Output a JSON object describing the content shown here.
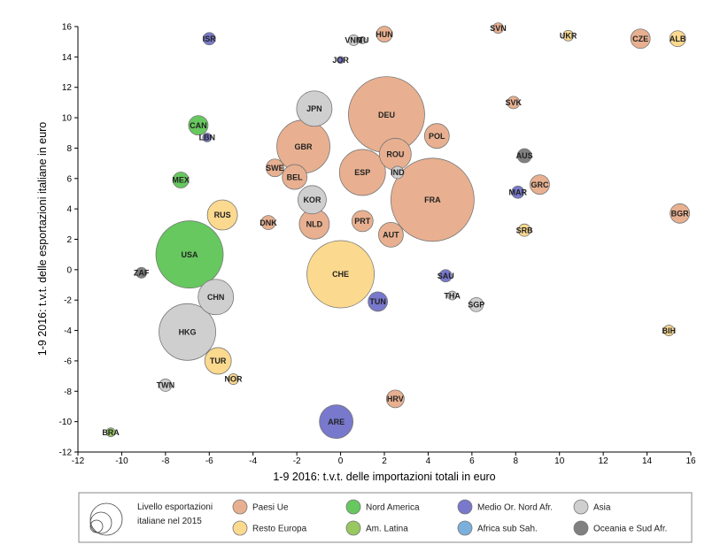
{
  "chart_data": {
    "type": "scatter",
    "title": "",
    "xlabel": "1-9 2016: t.v.t. delle importazioni totali in euro",
    "ylabel": "1-9 2016: t.v.t. delle esportazioni italiane in euro",
    "xlim": [
      -12,
      16
    ],
    "ylim": [
      -12,
      16
    ],
    "x_ticks": [
      -12,
      -10,
      -8,
      -6,
      -4,
      -2,
      0,
      2,
      4,
      6,
      8,
      10,
      12,
      14,
      16
    ],
    "y_ticks": [
      -12,
      -10,
      -8,
      -6,
      -4,
      -2,
      0,
      2,
      4,
      6,
      8,
      10,
      12,
      14,
      16
    ],
    "grid": false,
    "size_legend_label": "Livello esportazioni italiane nel 2015",
    "groups": [
      {
        "key": "ue",
        "name": "Paesi Ue",
        "color": "#e8b090"
      },
      {
        "key": "na",
        "name": "Nord America",
        "color": "#66c85e"
      },
      {
        "key": "mena",
        "name": "Medio Or. Nord Afr.",
        "color": "#7878cc"
      },
      {
        "key": "asia",
        "name": "Asia",
        "color": "#cfcfcf"
      },
      {
        "key": "re",
        "name": "Resto Europa",
        "color": "#fbd98e"
      },
      {
        "key": "la",
        "name": "Am. Latina",
        "color": "#98c860"
      },
      {
        "key": "ssa",
        "name": "Africa sub Sah.",
        "color": "#7bb0dc"
      },
      {
        "key": "oc",
        "name": "Oceania e Sud Afr.",
        "color": "#808080"
      }
    ],
    "points": [
      {
        "label": "FRA",
        "x": 4.2,
        "y": 4.6,
        "size": 47,
        "group": "ue"
      },
      {
        "label": "DEU",
        "x": 2.1,
        "y": 10.2,
        "size": 43,
        "group": "ue"
      },
      {
        "label": "CHE",
        "x": 0.0,
        "y": -0.3,
        "size": 38,
        "group": "re"
      },
      {
        "label": "USA",
        "x": -6.9,
        "y": 1.0,
        "size": 38,
        "group": "na"
      },
      {
        "label": "GBR",
        "x": -1.7,
        "y": 8.1,
        "size": 30,
        "group": "ue"
      },
      {
        "label": "HKG",
        "x": -7.0,
        "y": -4.1,
        "size": 32,
        "group": "asia"
      },
      {
        "label": "ESP",
        "x": 1.0,
        "y": 6.4,
        "size": 26,
        "group": "ue"
      },
      {
        "label": "JPN",
        "x": -1.2,
        "y": 10.6,
        "size": 20,
        "group": "asia"
      },
      {
        "label": "CHN",
        "x": -5.7,
        "y": -1.8,
        "size": 20,
        "group": "asia"
      },
      {
        "label": "ARE",
        "x": -0.2,
        "y": -10.0,
        "size": 19,
        "group": "mena"
      },
      {
        "label": "ROU",
        "x": 2.5,
        "y": 7.6,
        "size": 18,
        "group": "ue"
      },
      {
        "label": "RUS",
        "x": -5.4,
        "y": 3.6,
        "size": 17,
        "group": "re"
      },
      {
        "label": "NLD",
        "x": -1.2,
        "y": 3.0,
        "size": 17,
        "group": "ue"
      },
      {
        "label": "KOR",
        "x": -1.3,
        "y": 4.6,
        "size": 16,
        "group": "asia"
      },
      {
        "label": "BEL",
        "x": -2.1,
        "y": 6.1,
        "size": 14,
        "group": "ue"
      },
      {
        "label": "POL",
        "x": 4.4,
        "y": 8.8,
        "size": 14,
        "group": "ue"
      },
      {
        "label": "TUR",
        "x": -5.6,
        "y": -6.0,
        "size": 15,
        "group": "re"
      },
      {
        "label": "AUT",
        "x": 2.3,
        "y": 2.3,
        "size": 14,
        "group": "ue"
      },
      {
        "label": "PRT",
        "x": 1.0,
        "y": 3.2,
        "size": 12,
        "group": "ue"
      },
      {
        "label": "GRC",
        "x": 9.1,
        "y": 5.6,
        "size": 11,
        "group": "ue"
      },
      {
        "label": "BGR",
        "x": 15.5,
        "y": 3.7,
        "size": 11,
        "group": "ue"
      },
      {
        "label": "CZE",
        "x": 13.7,
        "y": 15.2,
        "size": 11,
        "group": "ue"
      },
      {
        "label": "HRV",
        "x": 2.5,
        "y": -8.5,
        "size": 10,
        "group": "ue"
      },
      {
        "label": "SWE",
        "x": -3.0,
        "y": 6.7,
        "size": 10,
        "group": "ue"
      },
      {
        "label": "HUN",
        "x": 2.0,
        "y": 15.5,
        "size": 9,
        "group": "ue"
      },
      {
        "label": "DNK",
        "x": -3.3,
        "y": 3.1,
        "size": 8,
        "group": "ue"
      },
      {
        "label": "SVK",
        "x": 7.9,
        "y": 11.0,
        "size": 7,
        "group": "ue"
      },
      {
        "label": "SVN",
        "x": 7.2,
        "y": 15.9,
        "size": 6,
        "group": "ue"
      },
      {
        "label": "CAN",
        "x": -6.5,
        "y": 9.5,
        "size": 11,
        "group": "na"
      },
      {
        "label": "MEX",
        "x": -7.3,
        "y": 5.9,
        "size": 9,
        "group": "na"
      },
      {
        "label": "ALB",
        "x": 15.4,
        "y": 15.2,
        "size": 9,
        "group": "re"
      },
      {
        "label": "SRB",
        "x": 8.4,
        "y": 2.6,
        "size": 7,
        "group": "re"
      },
      {
        "label": "UKR",
        "x": 10.4,
        "y": 15.4,
        "size": 6,
        "group": "re"
      },
      {
        "label": "NOR",
        "x": -4.9,
        "y": -7.2,
        "size": 6,
        "group": "re"
      },
      {
        "label": "BIH",
        "x": 15.0,
        "y": -4.0,
        "size": 6,
        "group": "re"
      },
      {
        "label": "TUN",
        "x": 1.7,
        "y": -2.1,
        "size": 11,
        "group": "mena"
      },
      {
        "label": "SAU",
        "x": 4.8,
        "y": -0.4,
        "size": 7,
        "group": "mena"
      },
      {
        "label": "ISR",
        "x": -6.0,
        "y": 15.2,
        "size": 7,
        "group": "mena"
      },
      {
        "label": "MAR",
        "x": 8.1,
        "y": 5.1,
        "size": 7,
        "group": "mena"
      },
      {
        "label": "LBN",
        "x": -6.1,
        "y": 8.7,
        "size": 5,
        "group": "mena"
      },
      {
        "label": "JOR",
        "x": 0.0,
        "y": 13.8,
        "size": 4,
        "group": "mena"
      },
      {
        "label": "IND",
        "x": 2.6,
        "y": 6.4,
        "size": 7,
        "group": "asia"
      },
      {
        "label": "SGP",
        "x": 6.2,
        "y": -2.3,
        "size": 8,
        "group": "asia"
      },
      {
        "label": "TWN",
        "x": -8.0,
        "y": -7.6,
        "size": 7,
        "group": "asia"
      },
      {
        "label": "THA",
        "x": 5.1,
        "y": -1.7,
        "size": 5,
        "group": "asia"
      },
      {
        "label": "VNM",
        "x": 0.6,
        "y": 15.1,
        "size": 6,
        "group": "asia"
      },
      {
        "label": "ITU",
        "x": 1.0,
        "y": 15.1,
        "size": 4,
        "group": "asia"
      },
      {
        "label": "BRA",
        "x": -10.5,
        "y": -10.7,
        "size": 5,
        "group": "la"
      },
      {
        "label": "AUS",
        "x": 8.4,
        "y": 7.5,
        "size": 8,
        "group": "oc"
      },
      {
        "label": "ZAF",
        "x": -9.1,
        "y": -0.2,
        "size": 6,
        "group": "oc"
      }
    ]
  }
}
